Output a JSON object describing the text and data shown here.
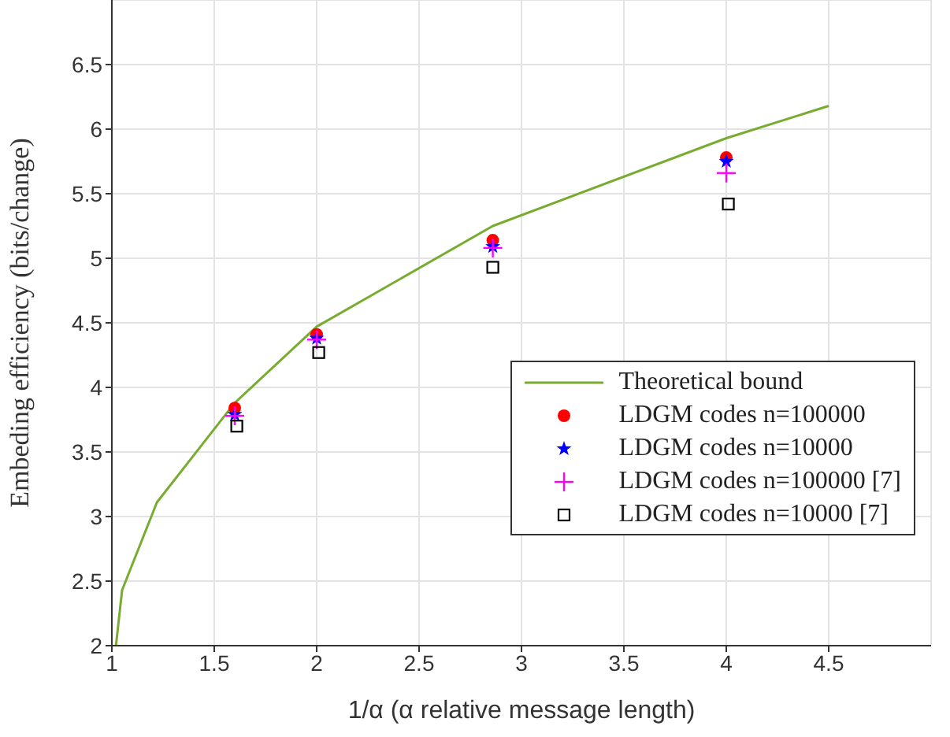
{
  "chart_data": {
    "type": "scatter",
    "xlabel": "1/α (α relative message length)",
    "ylabel": "Embeding efficiency (bits/change)",
    "xlim": [
      1,
      5
    ],
    "xticks": [
      1,
      1.5,
      2,
      2.5,
      3,
      3.5,
      4,
      4.5
    ],
    "ylim": [
      2,
      7
    ],
    "yticks": [
      2,
      2.5,
      3,
      3.5,
      4,
      4.5,
      5,
      5.5,
      6,
      6.5
    ],
    "grid": true,
    "legend": "bottom right",
    "series": [
      {
        "name": "Theoretical bound",
        "type": "line",
        "color": "#77ac30",
        "marker": "none",
        "line_style": "solid",
        "x": [
          1.02,
          1.05,
          1.22,
          1.6,
          2,
          2.86,
          4,
          4.5
        ],
        "values": [
          2.0,
          2.43,
          3.11,
          3.88,
          4.47,
          5.25,
          5.93,
          6.18
        ]
      },
      {
        "name": "LDGM codes n=100000",
        "color": "#ff0000",
        "marker": "circle",
        "x": [
          1.6,
          2,
          2.86,
          4
        ],
        "values": [
          3.84,
          4.41,
          5.14,
          5.78
        ]
      },
      {
        "name": "LDGM codes n=10000",
        "color": "#0000ff",
        "marker": "star",
        "x": [
          1.6,
          2,
          2.86,
          4
        ],
        "values": [
          3.79,
          4.38,
          5.09,
          5.75
        ]
      },
      {
        "name": "LDGM codes n=100000 [7]",
        "color": "#ff00ff",
        "marker": "cross",
        "x": [
          1.6,
          2,
          2.86,
          4
        ],
        "values": [
          3.78,
          4.37,
          5.08,
          5.66
        ]
      },
      {
        "name": "LDGM codes n=10000 [7]",
        "color": "#000000",
        "marker": "square",
        "x": [
          1.61,
          2.01,
          2.86,
          4.01
        ],
        "values": [
          3.7,
          4.27,
          4.93,
          5.42
        ]
      }
    ]
  }
}
